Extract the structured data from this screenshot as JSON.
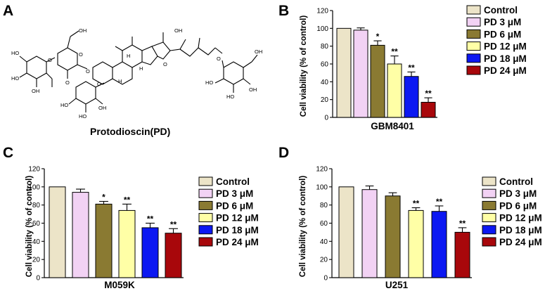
{
  "panel_a": {
    "letter": "A",
    "caption": "Protodioscin(PD)",
    "atom_O": "O",
    "atom_OH": "OH",
    "atom_HO": "HO",
    "atom_H": "H"
  },
  "legend_labels": [
    "Control",
    "PD   3 μM",
    "PD   6 μM",
    "PD 12 μM",
    "PD 18 μM",
    "PD 24 μM"
  ],
  "colors": [
    "#ece4c8",
    "#f2d2f4",
    "#8a7a32",
    "#ffffa6",
    "#0c18f2",
    "#a8070b"
  ],
  "chart_data": [
    {
      "type": "bar",
      "panel": "B",
      "title": "",
      "xlabel": "GBM8401",
      "ylabel": "Cell viability (% of control)",
      "ylim": [
        0,
        120
      ],
      "yticks": [
        0,
        20,
        40,
        60,
        80,
        100,
        120
      ],
      "categories": [
        "Control",
        "PD   3 μM",
        "PD   6 μM",
        "PD 12 μM",
        "PD 18 μM",
        "PD 24 μM"
      ],
      "values": [
        100,
        98,
        81,
        60,
        46,
        17
      ],
      "errors": [
        0,
        2.5,
        5,
        9,
        5,
        5
      ],
      "significance": [
        "",
        "",
        "*",
        "**",
        "**",
        "**"
      ],
      "legend_position": "right"
    },
    {
      "type": "bar",
      "panel": "C",
      "title": "",
      "xlabel": "M059K",
      "ylabel": "Cell viability (% of control)",
      "ylim": [
        0,
        120
      ],
      "yticks": [
        0,
        20,
        40,
        60,
        80,
        100,
        120
      ],
      "categories": [
        "Control",
        "PD   3 μM",
        "PD   6 μM",
        "PD 12 μM",
        "PD 18 μM",
        "PD 24 μM"
      ],
      "values": [
        100,
        94,
        81,
        74,
        55,
        49
      ],
      "errors": [
        0,
        3.5,
        3,
        7,
        5,
        5
      ],
      "significance": [
        "",
        "",
        "*",
        "**",
        "**",
        "**"
      ],
      "legend_position": "right"
    },
    {
      "type": "bar",
      "panel": "D",
      "title": "",
      "xlabel": "U251",
      "ylabel": "Cell viability (% of control)",
      "ylim": [
        0,
        120
      ],
      "yticks": [
        0,
        20,
        40,
        60,
        80,
        100,
        120
      ],
      "categories": [
        "Control",
        "PD   3 μM",
        "PD   6 μM",
        "PD 12 μM",
        "PD 18 μM",
        "PD 24 μM"
      ],
      "values": [
        100,
        97,
        90,
        74,
        73,
        50
      ],
      "errors": [
        0,
        4,
        3.5,
        3,
        6,
        5
      ],
      "significance": [
        "",
        "",
        "",
        "**",
        "**",
        "**"
      ],
      "legend_position": "right"
    }
  ]
}
